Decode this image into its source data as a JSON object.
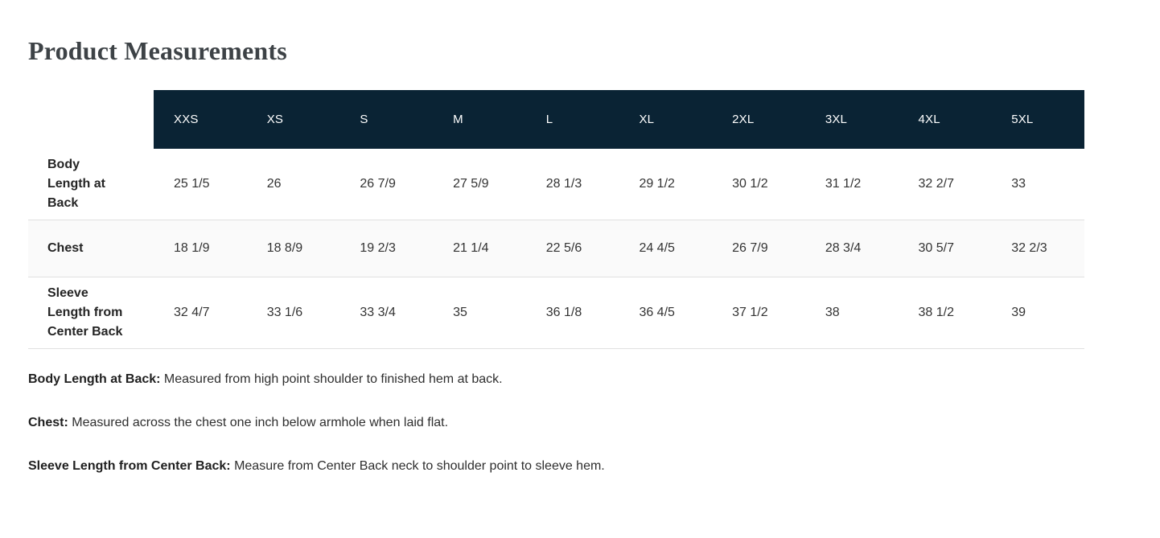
{
  "page": {
    "title": "Product Measurements"
  },
  "table": {
    "columns": [
      "XXS",
      "XS",
      "S",
      "M",
      "L",
      "XL",
      "2XL",
      "3XL",
      "4XL",
      "5XL"
    ],
    "rows": [
      {
        "label": "Body Length at Back",
        "values": [
          "25 1/5",
          "26",
          "26 7/9",
          "27 5/9",
          "28 1/3",
          "29 1/2",
          "30 1/2",
          "31 1/2",
          "32 2/7",
          "33"
        ]
      },
      {
        "label": "Chest",
        "values": [
          "18 1/9",
          "18 8/9",
          "19 2/3",
          "21 1/4",
          "22 5/6",
          "24 4/5",
          "26 7/9",
          "28 3/4",
          "30 5/7",
          "32 2/3"
        ]
      },
      {
        "label": "Sleeve Length from Center Back",
        "values": [
          "32 4/7",
          "33 1/6",
          "33 3/4",
          "35",
          "36 1/8",
          "36 4/5",
          "37 1/2",
          "38",
          "38 1/2",
          "39"
        ]
      }
    ]
  },
  "notes": [
    {
      "term": "Body Length at Back:",
      "description": "Measured from high point shoulder to finished hem at back."
    },
    {
      "term": "Chest:",
      "description": "Measured across the chest one inch below armhole when laid flat."
    },
    {
      "term": "Sleeve Length from Center Back:",
      "description": "Measure from Center Back neck to shoulder point to sleeve hem."
    }
  ],
  "colors": {
    "header_bg": "#0a2334",
    "header_text": "#ffffff",
    "alt_row_bg": "#fafafa",
    "border": "#e0e0e0",
    "body_text": "#333333",
    "title_text": "#3d4246"
  }
}
